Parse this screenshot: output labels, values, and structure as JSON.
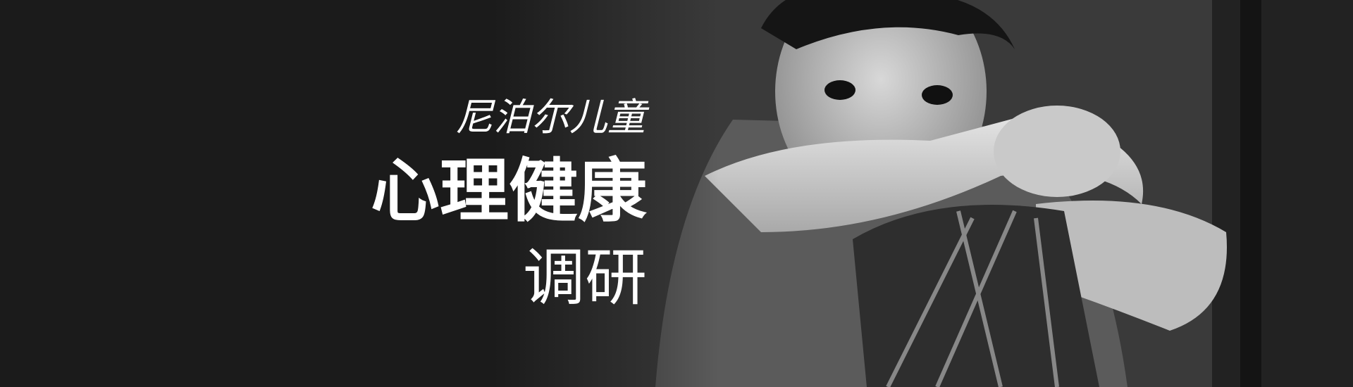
{
  "banner": {
    "subtitle": "尼泊尔儿童",
    "title": "心理健康",
    "tagline": "调研"
  }
}
